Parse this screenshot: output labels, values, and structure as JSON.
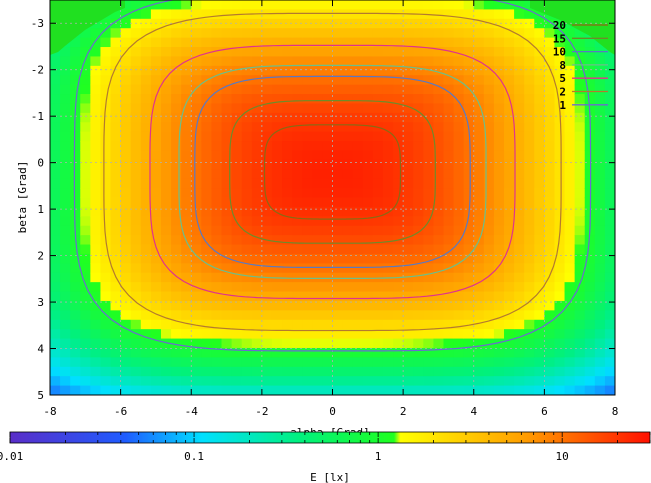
{
  "chart_data": {
    "type": "heatmap",
    "title": "",
    "xlabel": "alpha [Grad]",
    "ylabel": "beta [Grad]",
    "xlim": [
      -8,
      8
    ],
    "ylim": [
      -3.5,
      5
    ],
    "y_reversed": true,
    "xticks": [
      "-8",
      "-6",
      "-4",
      "-2",
      "0",
      "2",
      "4",
      "6",
      "8"
    ],
    "yticks": [
      "-3",
      "-2",
      "-1",
      "0",
      "1",
      "2",
      "3",
      "4",
      "5"
    ],
    "grid": true,
    "legend_position": "top-right",
    "contour_levels": [
      {
        "label": "20",
        "value": 20,
        "color": "#8b6914"
      },
      {
        "label": "15",
        "value": 15,
        "color": "#6e8b2a"
      },
      {
        "label": "10",
        "value": 10,
        "color": "#5a79c2"
      },
      {
        "label": "8",
        "value": 8,
        "color": "#6bbf8a"
      },
      {
        "label": "5",
        "value": 5,
        "color": "#e0338c"
      },
      {
        "label": "2",
        "value": 2,
        "color": "#b47a2e"
      },
      {
        "label": "1",
        "value": 1,
        "color": "#6b6bd0"
      }
    ],
    "colorbar": {
      "label": "E [lx]",
      "scale": "log",
      "range": [
        0.01,
        30
      ],
      "ticks": [
        "0.01",
        "0.1",
        "1",
        "10"
      ],
      "tick_values": [
        0.01,
        0.1,
        1,
        10
      ]
    },
    "peak_value_approx": 25
  }
}
